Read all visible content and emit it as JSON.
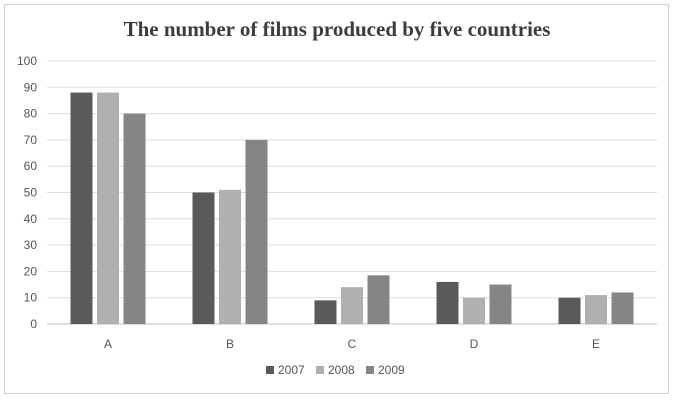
{
  "chart_data": {
    "type": "bar",
    "title": "The number of films produced by five countries",
    "xlabel": "",
    "ylabel": "",
    "categories": [
      "A",
      "B",
      "C",
      "D",
      "E"
    ],
    "series": [
      {
        "name": "2007",
        "color": "#5a5a5a",
        "values": [
          88,
          50,
          9,
          16,
          10
        ]
      },
      {
        "name": "2008",
        "color": "#b0b0b0",
        "values": [
          88,
          51,
          14,
          10,
          11
        ]
      },
      {
        "name": "2009",
        "color": "#858585",
        "values": [
          80,
          70,
          18.5,
          15,
          12
        ]
      }
    ],
    "ylim": [
      0,
      100
    ],
    "yticks": [
      "0",
      "10",
      "20",
      "30",
      "40",
      "50",
      "60",
      "70",
      "80",
      "90",
      "100"
    ],
    "grid": true,
    "legend_position": "bottom-center"
  }
}
